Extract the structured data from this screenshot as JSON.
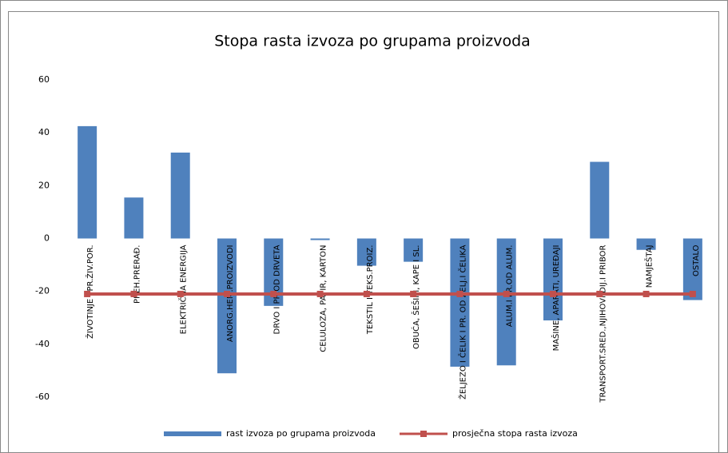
{
  "chart_data": {
    "type": "bar",
    "title": "Stopa rasta izvoza po grupama proizvoda",
    "categories": [
      "ŽIVOTINJE I PR.ŽIV.POR.",
      "PREH.PRERAĐ.",
      "ELEKTRIČNA ENERGIJA",
      "ANORG.HEM.PROIZVODI",
      "DRVO I PR.OD DRVETA",
      "CELULOZA, PAPIR, KARTON",
      "TEKSTIL I TEKS.PROIZ.",
      "OBUĆA, ŠEŠIRI, KAPE I SL.",
      "ŽELJEZO I ČELIK I PR. OD ŽELJ.I ČELIKA",
      "ALUM.I PR.OD ALUM.",
      "MAŠINE, APARATI, UREĐAJI",
      "TRANSPORT.SRED.,NJIHOVI DIJ.I PRIBOR",
      "NAMJEŠTAJ",
      "OSTALO"
    ],
    "series": [
      {
        "name": "rast izvoza po grupama proizvoda",
        "type": "bar",
        "color": "#4f81bd",
        "values": [
          42.5,
          15.5,
          32.5,
          -51,
          -25.5,
          -0.6,
          -10.3,
          -8.8,
          -48.5,
          -48,
          -31,
          29,
          -4.3,
          -23.3
        ]
      },
      {
        "name": "prosječna stopa rasta izvoza",
        "type": "line",
        "color": "#c0504d",
        "values": [
          -21,
          -21,
          -21,
          -21,
          -21,
          -21,
          -21,
          -21,
          -21,
          -21,
          -21,
          -21,
          -21,
          -21
        ]
      }
    ],
    "ylim": [
      -60,
      60
    ],
    "yticks": [
      -60,
      -40,
      -20,
      0,
      20,
      40,
      60
    ],
    "grid": false,
    "legend": "bottom"
  }
}
